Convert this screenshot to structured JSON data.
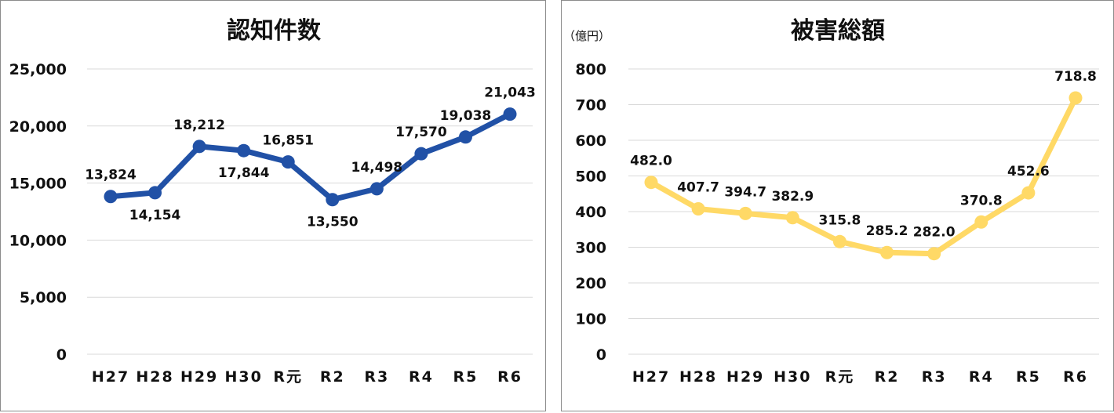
{
  "chart_data": [
    {
      "type": "line",
      "title": "認知件数",
      "unit_label": "",
      "categories": [
        "H27",
        "H28",
        "H29",
        "H30",
        "R元",
        "R2",
        "R3",
        "R4",
        "R5",
        "R6"
      ],
      "values": [
        13824,
        14154,
        18212,
        17844,
        16851,
        13550,
        14498,
        17570,
        19038,
        21043
      ],
      "value_labels": [
        "13,824",
        "14,154",
        "18,212",
        "17,844",
        "16,851",
        "13,550",
        "14,498",
        "17,570",
        "19,038",
        "21,043"
      ],
      "label_position": [
        "above",
        "below",
        "above",
        "below",
        "above",
        "below",
        "above",
        "above",
        "above",
        "above"
      ],
      "ylim": [
        0,
        25000
      ],
      "yticks": [
        0,
        5000,
        10000,
        15000,
        20000,
        25000
      ],
      "ytick_labels": [
        "0",
        "5,000",
        "10,000",
        "15,000",
        "20,000",
        "25,000"
      ],
      "color": "#2151a6",
      "grid": true,
      "legend": "none"
    },
    {
      "type": "line",
      "title": "被害総額",
      "unit_label": "（億円）",
      "categories": [
        "H27",
        "H28",
        "H29",
        "H30",
        "R元",
        "R2",
        "R3",
        "R4",
        "R5",
        "R6"
      ],
      "values": [
        482.0,
        407.7,
        394.7,
        382.9,
        315.8,
        285.2,
        282.0,
        370.8,
        452.6,
        718.8
      ],
      "value_labels": [
        "482.0",
        "407.7",
        "394.7",
        "382.9",
        "315.8",
        "285.2",
        "282.0",
        "370.8",
        "452.6",
        "718.8"
      ],
      "label_position": [
        "above",
        "above",
        "above",
        "above",
        "above",
        "above",
        "above",
        "above",
        "above",
        "above"
      ],
      "ylim": [
        0,
        800
      ],
      "yticks": [
        0,
        100,
        200,
        300,
        400,
        500,
        600,
        700,
        800
      ],
      "ytick_labels": [
        "0",
        "100",
        "200",
        "300",
        "400",
        "500",
        "600",
        "700",
        "800"
      ],
      "color": "#ffd966",
      "grid": true,
      "legend": "none"
    }
  ]
}
